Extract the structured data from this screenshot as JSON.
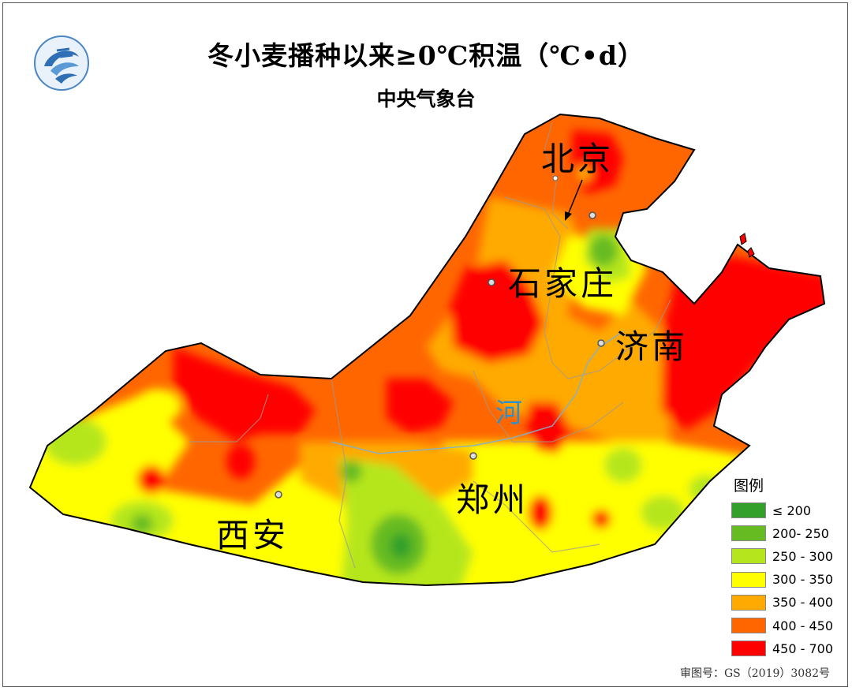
{
  "title": "冬小麦播种以来≥0℃积温（℃•d）",
  "subtitle": "中央气象台",
  "city_labels": {
    "beijing": "北京",
    "shijiazhuang": "石家庄",
    "jinan": "济南",
    "zhengzhou": "郑州",
    "xian": "西安"
  },
  "river_label": "河",
  "legend": {
    "title": "图例",
    "items": [
      {
        "label": "≤ 200",
        "color": "#33a02c"
      },
      {
        "label": "200- 250",
        "color": "#66bb22"
      },
      {
        "label": "250 - 300",
        "color": "#b5e61d"
      },
      {
        "label": "300 - 350",
        "color": "#ffff00"
      },
      {
        "label": "350 - 400",
        "color": "#ffaa00"
      },
      {
        "label": "400 - 450",
        "color": "#ff6600"
      },
      {
        "label": "450 - 700",
        "color": "#ff0000"
      }
    ]
  },
  "review_number": "审图号：GS（2019）3082号",
  "logo_icon": "cma-logo-icon"
}
